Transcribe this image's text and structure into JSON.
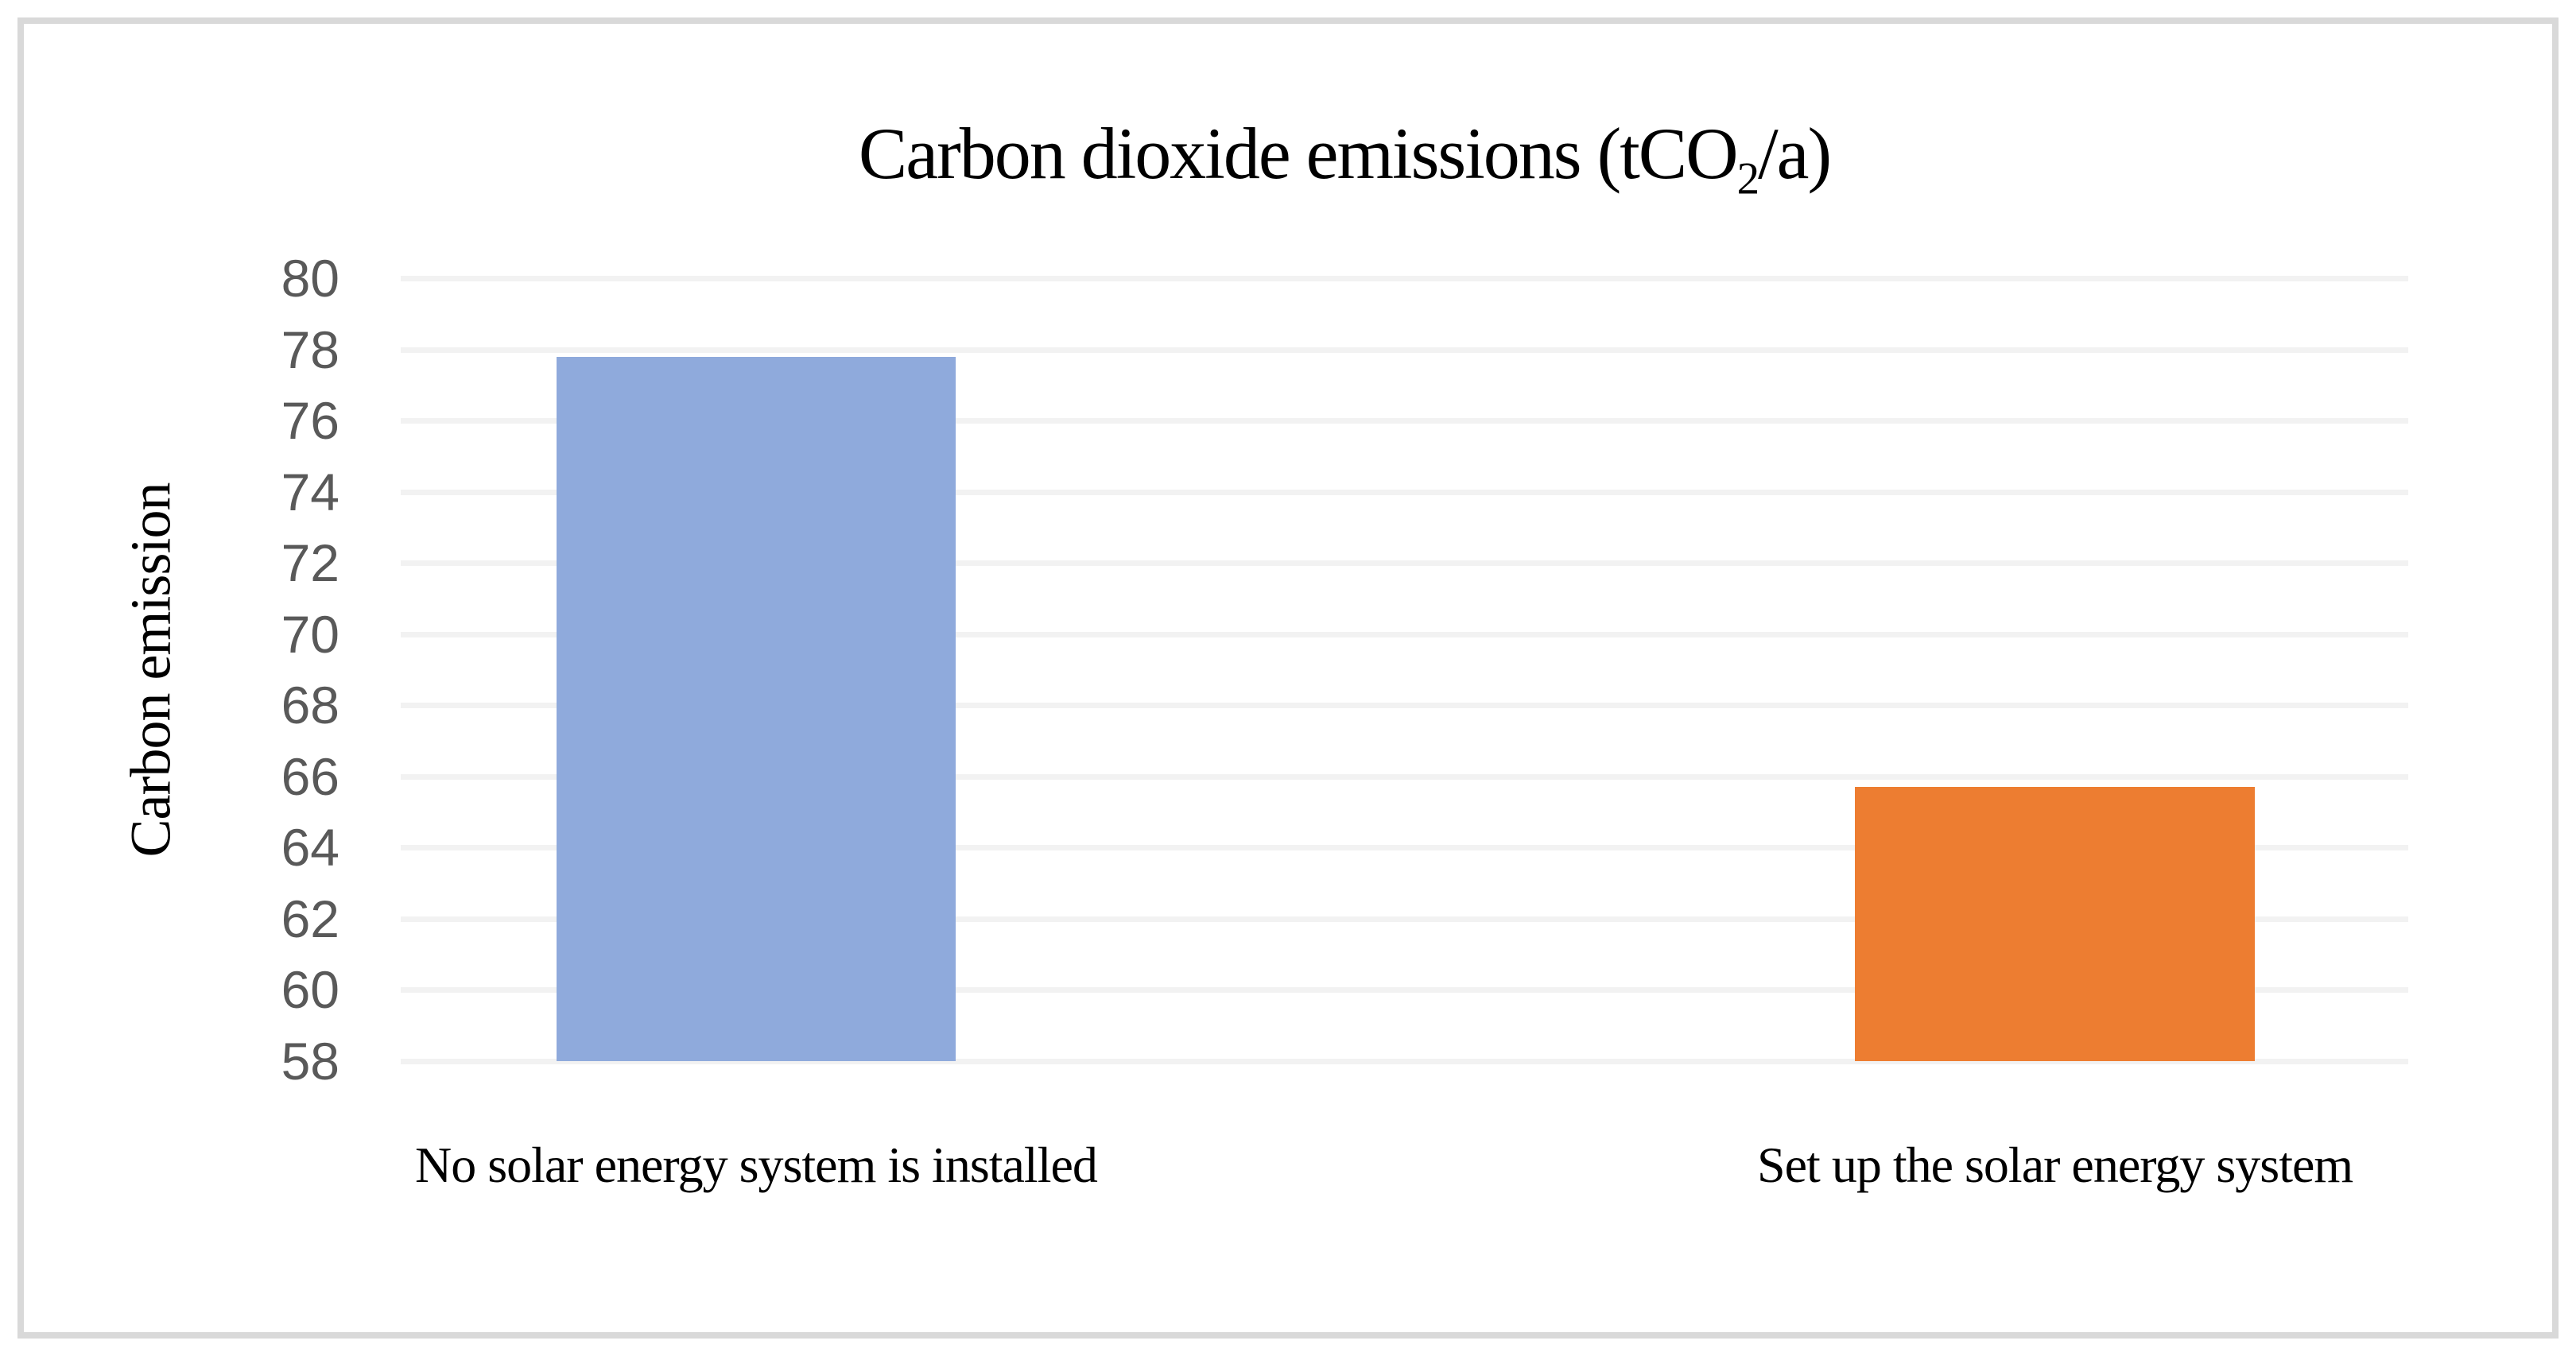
{
  "figure": {
    "background_color": "#FFFFFF",
    "border_color": "#D9D9D9"
  },
  "chart_data": {
    "type": "bar",
    "title": "Carbon dioxide emissions (tCO2/a)",
    "title_parts": {
      "pre": "Carbon dioxide emissions (tCO",
      "sub": "2",
      "post": "/a)"
    },
    "ylabel": "Carbon emission",
    "xlabel": "",
    "categories": [
      "No solar energy system is installed",
      "Set up the solar energy system"
    ],
    "values": [
      77.8,
      65.7
    ],
    "series": [
      {
        "name": "No solar energy system is installed",
        "value": 77.8,
        "color": "#8FAADC"
      },
      {
        "name": "Set up the solar energy system",
        "value": 65.7,
        "color": "#ED7D31"
      }
    ],
    "ylim": [
      58,
      80
    ],
    "ytick_step": 2,
    "yticks": [
      80,
      78,
      76,
      74,
      72,
      70,
      68,
      66,
      64,
      62,
      60,
      58
    ],
    "grid": "horizontal-only",
    "gridline_color": "#F2F2F2",
    "tick_label_color": "#595959",
    "legend_position": "none",
    "layout": {
      "bar_centers_pct": [
        17.7,
        82.4
      ],
      "bar_width_pct": 19.9
    }
  }
}
